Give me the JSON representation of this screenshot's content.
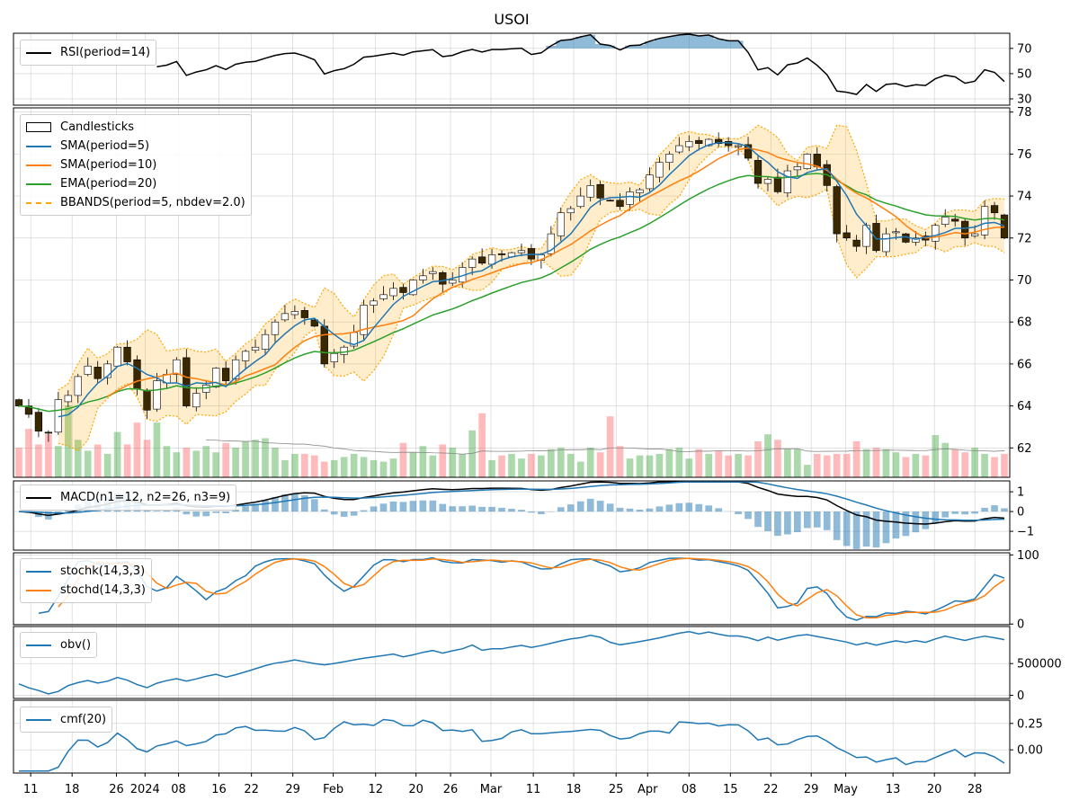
{
  "title": "USOI",
  "colors": {
    "sma5": "#1f77b4",
    "sma10": "#ff7f0e",
    "ema20": "#2ca02c",
    "bbands": "#ffa500",
    "up_vol": "#2ca02c",
    "down_vol": "#ff5555",
    "candle_down": "#3a2800",
    "macd": "#000000",
    "macd_hist": "#1f77b4",
    "stochk": "#1f77b4",
    "stochd": "#ff7f0e",
    "obv": "#1f77b4",
    "cmf": "#1f77b4",
    "rsi": "#000000"
  },
  "legends": {
    "rsi": [
      "RSI(period=14)"
    ],
    "price": [
      "Candlesticks",
      "SMA(period=5)",
      "SMA(period=10)",
      "EMA(period=20)",
      "BBANDS(period=5, nbdev=2.0)"
    ],
    "macd": [
      "MACD(n1=12, n2=26, n3=9)"
    ],
    "stoch": [
      "stochk(14,3,3)",
      "stochd(14,3,3)"
    ],
    "obv": [
      "obv()"
    ],
    "cmf": [
      "cmf(20)"
    ]
  },
  "chart_data": {
    "type": "candlestick",
    "title": "USOI",
    "close": [
      64.0,
      63.6,
      62.8,
      62.7,
      64.3,
      64.5,
      65.4,
      65.9,
      65.3,
      66.0,
      66.8,
      66.1,
      64.8,
      63.8,
      65.2,
      65.5,
      66.2,
      64.0,
      64.6,
      65.0,
      65.8,
      65.2,
      66.2,
      66.6,
      66.8,
      67.4,
      68.0,
      68.4,
      68.5,
      68.2,
      67.8,
      66.0,
      66.5,
      66.8,
      67.5,
      68.8,
      69.0,
      69.3,
      69.6,
      69.4,
      70.0,
      70.2,
      70.4,
      69.8,
      70.0,
      70.6,
      71.0,
      70.8,
      71.2,
      71.2,
      71.3,
      71.4,
      71.0,
      71.2,
      72.2,
      73.2,
      73.4,
      74.0,
      74.5,
      73.9,
      73.8,
      73.5,
      74.2,
      74.3,
      75.0,
      75.6,
      76.0,
      76.4,
      76.6,
      76.5,
      76.7,
      76.5,
      76.4,
      76.4,
      75.8,
      74.6,
      74.8,
      74.2,
      75.2,
      75.4,
      76.0,
      75.4,
      74.5,
      72.2,
      72.0,
      71.6,
      72.6,
      71.4,
      72.2,
      72.3,
      71.8,
      72.0,
      71.9,
      72.6,
      73.0,
      72.8,
      72.0,
      72.2,
      73.5,
      73.2,
      72.0
    ],
    "volume": [
      38000,
      62000,
      42000,
      55000,
      40000,
      92000,
      48000,
      34000,
      42000,
      30000,
      58000,
      42000,
      70000,
      48000,
      70000,
      40000,
      32000,
      38000,
      34000,
      40000,
      32000,
      44000,
      38000,
      46000,
      48000,
      50000,
      38000,
      22000,
      30000,
      30000,
      28000,
      20000,
      22000,
      26000,
      30000,
      26000,
      22000,
      20000,
      24000,
      44000,
      32000,
      40000,
      28000,
      42000,
      38000,
      30000,
      60000,
      82000,
      22000,
      28000,
      30000,
      24000,
      30000,
      28000,
      36000,
      38000,
      30000,
      20000,
      38000,
      32000,
      78000,
      40000,
      24000,
      28000,
      28000,
      30000,
      36000,
      38000,
      24000,
      36000,
      30000,
      34000,
      28000,
      30000,
      28000,
      46000,
      55000,
      48000,
      36000,
      36000,
      16000,
      30000,
      28000,
      30000,
      30000,
      46000,
      36000,
      38000,
      36000,
      32000,
      26000,
      30000,
      28000,
      54000,
      44000,
      36000,
      32000,
      38000,
      30000,
      26000,
      30000
    ],
    "x_ticks": [
      {
        "label": "11",
        "index": 1.2
      },
      {
        "label": "18",
        "index": 5.4
      },
      {
        "label": "26",
        "index": 9.9
      },
      {
        "label": "2024",
        "index": 12.8
      },
      {
        "label": "08",
        "index": 16.2
      },
      {
        "label": "16",
        "index": 20.3
      },
      {
        "label": "22",
        "index": 23.6
      },
      {
        "label": "29",
        "index": 27.8
      },
      {
        "label": "Feb",
        "index": 31.9
      },
      {
        "label": "12",
        "index": 36.2
      },
      {
        "label": "20",
        "index": 40.3
      },
      {
        "label": "26",
        "index": 43.8
      },
      {
        "label": "Mar",
        "index": 47.9
      },
      {
        "label": "11",
        "index": 52.2
      },
      {
        "label": "18",
        "index": 56.3
      },
      {
        "label": "25",
        "index": 60.6
      },
      {
        "label": "Apr",
        "index": 63.8
      },
      {
        "label": "08",
        "index": 68.0
      },
      {
        "label": "15",
        "index": 72.2
      },
      {
        "label": "22",
        "index": 76.3
      },
      {
        "label": "29",
        "index": 80.4
      },
      {
        "label": "May",
        "index": 83.9
      },
      {
        "label": "13",
        "index": 88.7
      },
      {
        "label": "20",
        "index": 92.9
      },
      {
        "label": "28",
        "index": 97.0
      }
    ],
    "panels": {
      "rsi": {
        "ylim": [
          25,
          82
        ],
        "yticks": [
          "30",
          "50",
          "70"
        ],
        "overbought": 70
      },
      "price": {
        "ylim": [
          60.6,
          78.2
        ],
        "yticks": [
          "62",
          "64",
          "66",
          "68",
          "70",
          "72",
          "74",
          "76",
          "78"
        ]
      },
      "macd": {
        "ylim": [
          -1.95,
          1.55
        ],
        "yticks": [
          "1",
          "0",
          "−1"
        ]
      },
      "stoch": {
        "ylim": [
          -1,
          103
        ],
        "yticks": [
          "0",
          "100"
        ]
      },
      "obv": {
        "yticks": [
          "0",
          "500000"
        ]
      },
      "cmf": {
        "ylim": [
          -0.22,
          0.47
        ],
        "yticks": [
          "0.00",
          "0.25"
        ]
      }
    }
  }
}
